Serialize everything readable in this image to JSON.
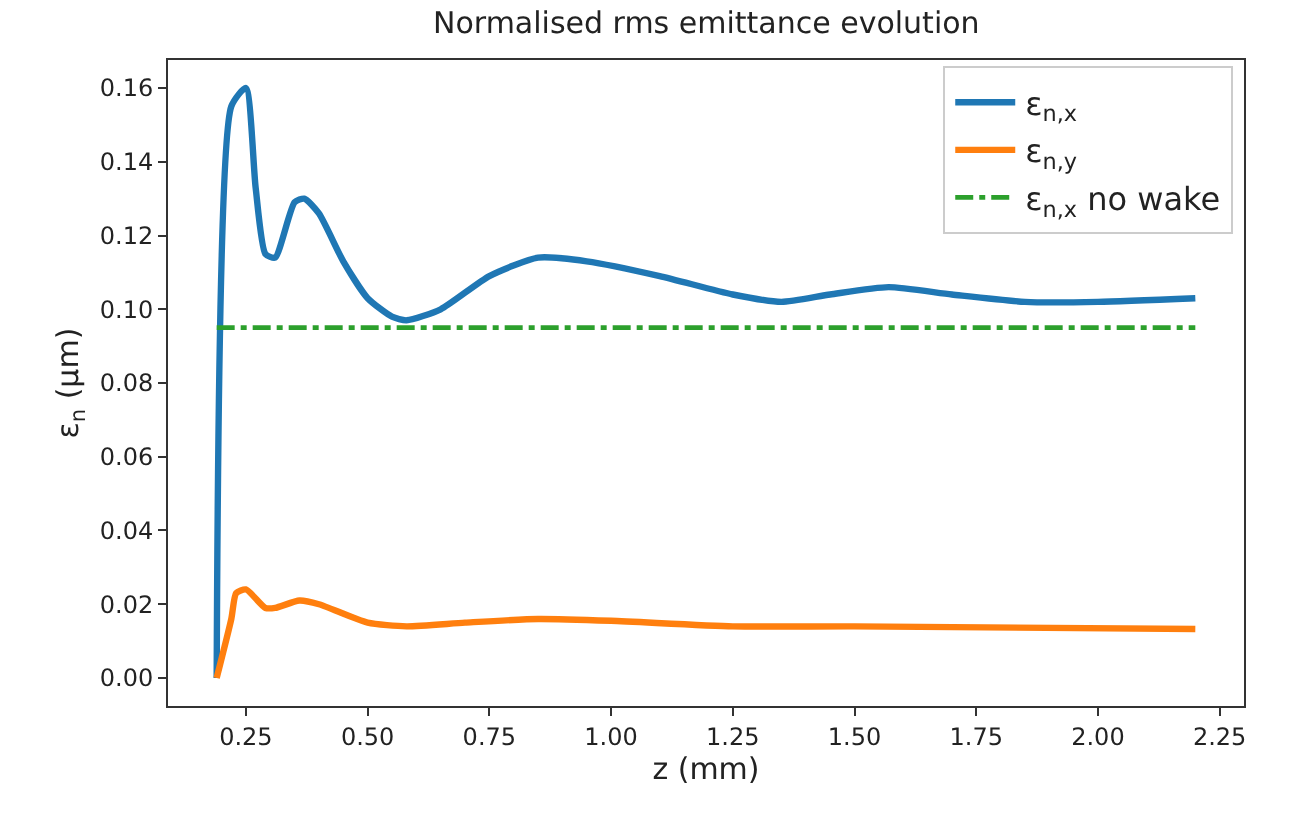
{
  "chart_data": {
    "type": "line",
    "title": "Normalised rms emittance evolution",
    "xlabel": "z (mm)",
    "ylabel": "ε$_{n}$ (μm)",
    "xlim": [
      0.09,
      2.3
    ],
    "xticks": [
      {
        "value": 0.25,
        "label": "0.25"
      },
      {
        "value": 0.5,
        "label": "0.50"
      },
      {
        "value": 0.75,
        "label": "0.75"
      },
      {
        "value": 1.0,
        "label": "1.00"
      },
      {
        "value": 1.25,
        "label": "1.25"
      },
      {
        "value": 1.5,
        "label": "1.50"
      },
      {
        "value": 1.75,
        "label": "1.75"
      },
      {
        "value": 2.0,
        "label": "2.00"
      },
      {
        "value": 2.25,
        "label": "2.25"
      }
    ],
    "ylim": [
      -0.0076,
      0.1676
    ],
    "yticks": [
      {
        "value": 0,
        "label": "0.00"
      },
      {
        "value": 0.02,
        "label": "0.02"
      },
      {
        "value": 0.04,
        "label": "0.04"
      },
      {
        "value": 0.06,
        "label": "0.06"
      },
      {
        "value": 0.08,
        "label": "0.08"
      },
      {
        "value": 0.1,
        "label": "0.10"
      },
      {
        "value": 0.12,
        "label": "0.12"
      },
      {
        "value": 0.14,
        "label": "0.14"
      },
      {
        "value": 0.16,
        "label": "0.16"
      }
    ],
    "legend": "top right",
    "marker": "none",
    "series": [
      {
        "name": "ε$_{n,x}$",
        "color": "#1f77b4",
        "line_style": "solid",
        "x": [
          0.19,
          0.22,
          0.25,
          0.27,
          0.29,
          0.31,
          0.35,
          0.37,
          0.4,
          0.45,
          0.5,
          0.55,
          0.58,
          0.65,
          0.75,
          0.85,
          0.95,
          1.1,
          1.25,
          1.35,
          1.45,
          1.57,
          1.7,
          1.85,
          2.0,
          2.2
        ],
        "values": [
          0.0,
          0.155,
          0.16,
          0.133,
          0.115,
          0.114,
          0.129,
          0.13,
          0.126,
          0.113,
          0.103,
          0.098,
          0.097,
          0.1,
          0.109,
          0.114,
          0.113,
          0.109,
          0.104,
          0.102,
          0.104,
          0.106,
          0.104,
          0.102,
          0.102,
          0.103
        ]
      },
      {
        "name": "ε$_{n,y}$",
        "color": "#ff7f0e",
        "line_style": "solid",
        "x": [
          0.19,
          0.22,
          0.23,
          0.25,
          0.29,
          0.31,
          0.36,
          0.4,
          0.5,
          0.58,
          0.7,
          0.85,
          1.0,
          1.25,
          1.5,
          2.2
        ],
        "values": [
          0.0,
          0.016,
          0.023,
          0.024,
          0.019,
          0.019,
          0.021,
          0.02,
          0.015,
          0.014,
          0.015,
          0.016,
          0.0155,
          0.014,
          0.014,
          0.0133
        ]
      },
      {
        "name": "ε$_{n,x}$ no wake",
        "color": "#2ca02c",
        "line_style": "dashdot",
        "x": [
          0.19,
          2.2
        ],
        "values": [
          0.095,
          0.095
        ]
      }
    ]
  }
}
